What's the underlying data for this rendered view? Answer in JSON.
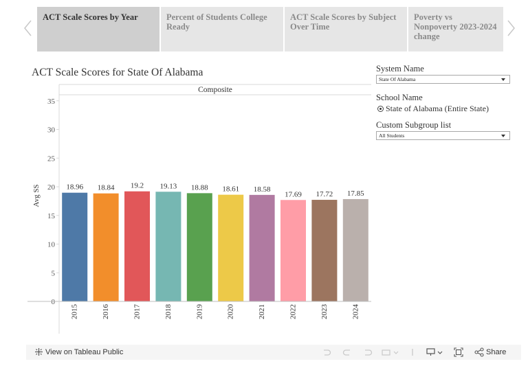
{
  "tabs": [
    {
      "label": "ACT Scale Scores by Year",
      "active": true
    },
    {
      "label": "Percent of Students College Ready",
      "active": false
    },
    {
      "label": "ACT Scale Scores by Subject Over Time",
      "active": false
    },
    {
      "label": "Poverty vs Nonpoverty 2023-2024 change",
      "active": false
    }
  ],
  "filters": {
    "system_name_label": "System Name",
    "system_name_value": "State Of Alabama",
    "school_name_label": "School Name",
    "school_name_value": "State of Alabama (Entire State)",
    "subgroup_label": "Custom Subgroup list",
    "subgroup_value": "All Students"
  },
  "toolbar": {
    "view_label": "View on Tableau Public",
    "share_label": "Share"
  },
  "chart_data": {
    "type": "bar",
    "title": "ACT Scale Scores for State Of Alabama",
    "panel_header": "Composite",
    "ylabel": "Avg SS",
    "xlabel": "",
    "categories": [
      "2015",
      "2016",
      "2017",
      "2018",
      "2019",
      "2020",
      "2021",
      "2022",
      "2023",
      "2024"
    ],
    "values": [
      18.96,
      18.84,
      19.2,
      19.13,
      18.88,
      18.61,
      18.58,
      17.69,
      17.72,
      17.85
    ],
    "value_labels": [
      "18.96",
      "18.84",
      "19.2",
      "19.13",
      "18.88",
      "18.61",
      "18.58",
      "17.69",
      "17.72",
      "17.85"
    ],
    "colors": [
      "#4e79a7",
      "#f28e2b",
      "#e15759",
      "#76b7b2",
      "#59a14f",
      "#edc948",
      "#b07aa1",
      "#ff9da7",
      "#9c755f",
      "#bab0ac"
    ],
    "yticks": [
      0,
      5,
      10,
      15,
      20,
      25,
      30,
      35
    ],
    "ylim": [
      0,
      37
    ],
    "grid": false
  }
}
